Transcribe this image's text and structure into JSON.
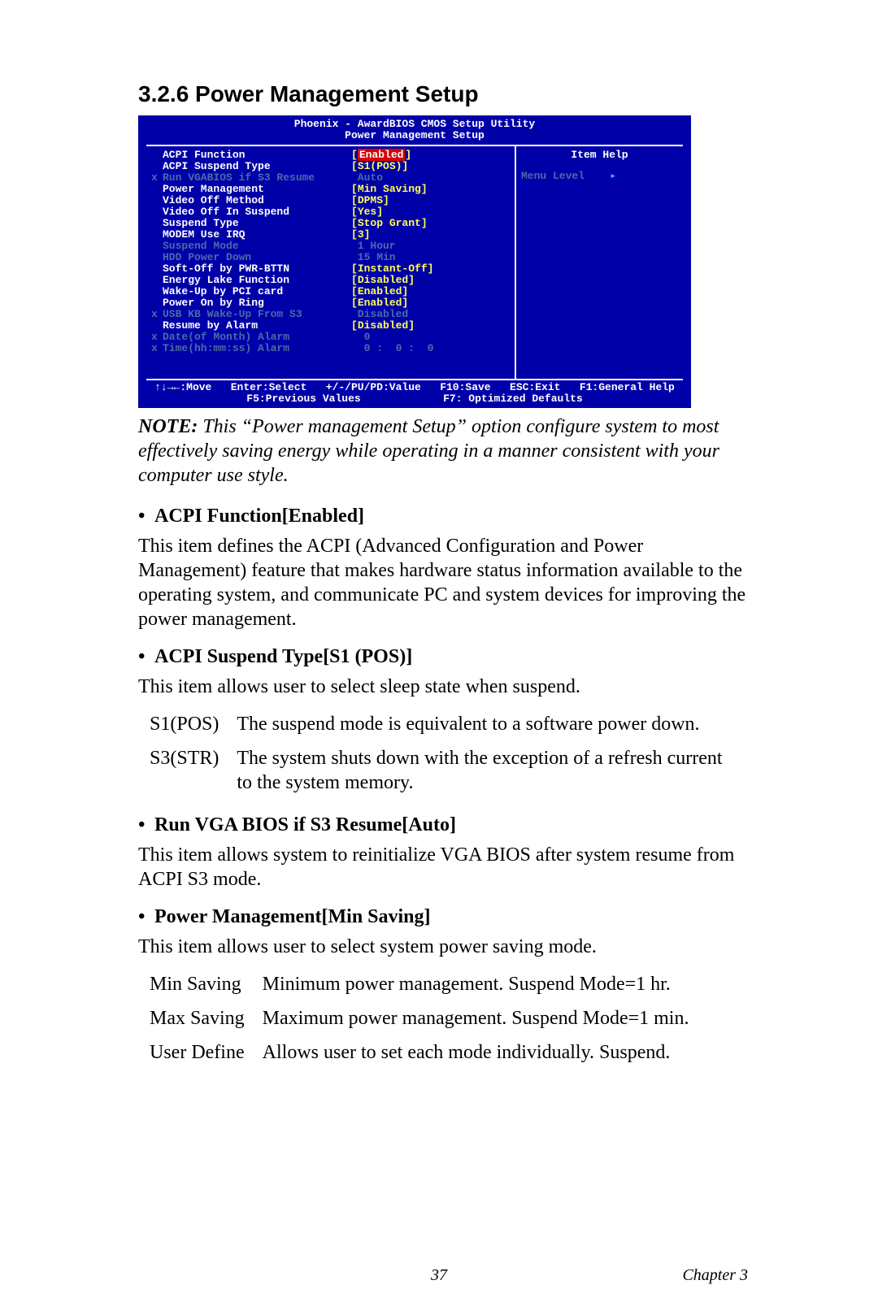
{
  "heading": "3.2.6 Power Management Setup",
  "bios": {
    "title1": "Phoenix - AwardBIOS CMOS Setup Utility",
    "title2": "Power Management Setup",
    "help_title": "Item Help",
    "menu_level_label": "Menu Level",
    "menu_level_arrow": "▸",
    "rows": [
      {
        "x": "",
        "dim": false,
        "label": "ACPI Function",
        "value": "Enabled",
        "bracket": true,
        "sel": true
      },
      {
        "x": "",
        "dim": false,
        "label": "ACPI Suspend Type",
        "value": "S1(POS)",
        "bracket": true,
        "yellow": true
      },
      {
        "x": "x",
        "dim": true,
        "label": "Run VGABIOS if S3 Resume",
        "value": "Auto",
        "bracket": false
      },
      {
        "x": "",
        "dim": false,
        "label": "Power Management",
        "value": "Min Saving",
        "bracket": true,
        "yellow": true
      },
      {
        "x": "",
        "dim": false,
        "label": "Video Off Method",
        "value": "DPMS",
        "bracket": true,
        "yellow": true
      },
      {
        "x": "",
        "dim": false,
        "label": "Video Off In Suspend",
        "value": "Yes",
        "bracket": true,
        "yellow": true
      },
      {
        "x": "",
        "dim": false,
        "label": "Suspend Type",
        "value": "Stop Grant",
        "bracket": true,
        "yellow": true
      },
      {
        "x": "",
        "dim": false,
        "label": "MODEM Use IRQ",
        "value": "3",
        "bracket": true,
        "yellow": true
      },
      {
        "x": "",
        "dim": true,
        "label": "Suspend Mode",
        "value": "1 Hour",
        "bracket": false
      },
      {
        "x": "",
        "dim": true,
        "label": "HDD Power Down",
        "value": "15 Min",
        "bracket": false
      },
      {
        "x": "",
        "dim": false,
        "label": "Soft-Off by PWR-BTTN",
        "value": "Instant-Off",
        "bracket": true,
        "yellow": true
      },
      {
        "x": "",
        "dim": false,
        "label": "Energy Lake Function",
        "value": "Disabled",
        "bracket": true,
        "yellow": true
      },
      {
        "x": "",
        "dim": false,
        "label": "Wake-Up by PCI card",
        "value": "Enabled",
        "bracket": true,
        "yellow": true
      },
      {
        "x": "",
        "dim": false,
        "label": "Power On by Ring",
        "value": "Enabled",
        "bracket": true,
        "yellow": true
      },
      {
        "x": "x",
        "dim": true,
        "label": "USB KB Wake-Up From S3",
        "value": "Disabled",
        "bracket": false
      },
      {
        "x": "",
        "dim": false,
        "label": "Resume by Alarm",
        "value": "Disabled",
        "bracket": true,
        "yellow": true
      },
      {
        "x": "x",
        "dim": true,
        "label": "Date(of Month) Alarm",
        "value": " 0",
        "bracket": false
      },
      {
        "x": "x",
        "dim": true,
        "label": "Time(hh:mm:ss) Alarm",
        "value": " 0 :  0 :  0",
        "bracket": false
      }
    ],
    "footer1": "↑↓→←:Move   Enter:Select   +/-/PU/PD:Value   F10:Save   ESC:Exit   F1:General Help",
    "footer2": "F5:Previous Values             F7: Optimized Defaults"
  },
  "note_label": "NOTE:",
  "note_text": " This “Power management Setup” option configure system to most effectively saving energy while operating in a manner consistent with your computer use style.",
  "b1": "ACPI Function[Enabled]",
  "p1": "This item defines the ACPI (Advanced Configuration and Power Management) feature that makes hardware status information available to the operating system, and communicate PC and system devices for improving the power management.",
  "b2": "ACPI Suspend Type[S1 (POS)]",
  "p2": "This item allows user to select sleep state when suspend.",
  "t1": {
    "r1k": "S1(POS)",
    "r1v": "The suspend mode is equivalent to a software power down.",
    "r2k": "S3(STR)",
    "r2v": "The system shuts down with the exception of a refresh current to the system memory."
  },
  "b3": "Run VGA BIOS if S3 Resume[Auto]",
  "p3": "This item allows system to reinitialize VGA BIOS after system resume from ACPI S3 mode.",
  "b4": "Power Management[Min Saving]",
  "p4": "This item allows user to select system power saving mode.",
  "t2": {
    "r1k": "Min Saving",
    "r1v": "Minimum power management. Suspend Mode=1 hr.",
    "r2k": "Max Saving",
    "r2v": "Maximum power management. Suspend Mode=1 min.",
    "r3k": "User Define",
    "r3v": "Allows user to set each mode individually. Suspend."
  },
  "page_num": "37",
  "chapter": "Chapter 3",
  "colors": {
    "bios_bg": "#0000a8",
    "bios_fg": "#ffffff",
    "bios_dim": "#4a6aa8",
    "bios_yellow": "#ffff55",
    "bios_sel_bg": "#d80000",
    "bios_arrow": "#55aaff",
    "page_bg": "#ffffff",
    "text": "#000000"
  }
}
